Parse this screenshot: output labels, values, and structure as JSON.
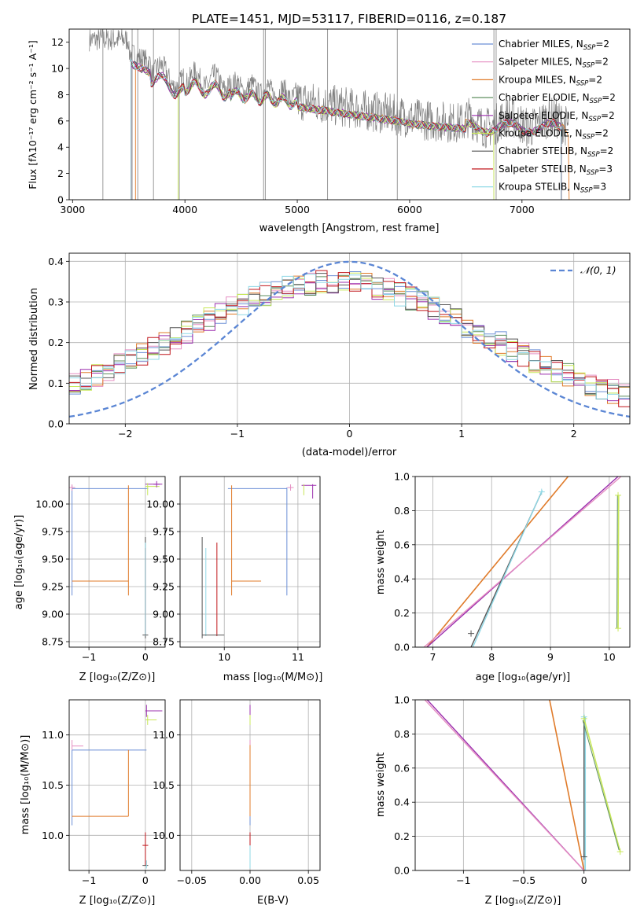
{
  "colors": {
    "Chabrier MILES": "#6b8fd6",
    "Salpeter MILES": "#e58fc2",
    "Kroupa MILES": "#e07b2a",
    "Chabrier ELODIE": "#5f8f5f",
    "Salpeter ELODIE": "#9b2fae",
    "Kroupa ELODIE": "#c8e85a",
    "Chabrier STELIB": "#555555",
    "Salpeter STELIB": "#c0161b",
    "Kroupa STELIB": "#8fd8e6",
    "data": "#808080",
    "gaussian": "#5b86d4"
  },
  "chart_data": [
    {
      "id": "spectrum",
      "type": "line",
      "title": "PLATE=1451, MJD=53117, FIBERID=0116, z=0.187",
      "xlabel": "wavelength [Angstrom, rest frame]",
      "ylabel": "Flux [fλ10⁻¹⁷ erg cm⁻² s⁻¹ A⁻¹]",
      "xlim": [
        2970,
        7960
      ],
      "ylim": [
        0,
        13
      ],
      "xticks": [
        3000,
        4000,
        5000,
        6000,
        7000
      ],
      "yticks": [
        0,
        2,
        4,
        6,
        8,
        10,
        12
      ],
      "grid": false,
      "legend_position": "upper-right",
      "legend": [
        {
          "name": "Chabrier MILES",
          "label": "Chabrier MILES, N",
          "sub": "SSP",
          "suffix": "=2"
        },
        {
          "name": "Salpeter MILES",
          "label": "Salpeter MILES, N",
          "sub": "SSP",
          "suffix": "=2"
        },
        {
          "name": "Kroupa MILES",
          "label": "Kroupa MILES, N",
          "sub": "SSP",
          "suffix": "=2"
        },
        {
          "name": "Chabrier ELODIE",
          "label": "Chabrier ELODIE, N",
          "sub": "SSP",
          "suffix": "=2"
        },
        {
          "name": "Salpeter ELODIE",
          "label": "Salpeter ELODIE, N",
          "sub": "SSP",
          "suffix": "=2"
        },
        {
          "name": "Kroupa ELODIE",
          "label": "Kroupa ELODIE, N",
          "sub": "SSP",
          "suffix": "=2"
        },
        {
          "name": "Chabrier STELIB",
          "label": "Chabrier STELIB, N",
          "sub": "SSP",
          "suffix": "=2"
        },
        {
          "name": "Salpeter STELIB",
          "label": "Salpeter STELIB, N",
          "sub": "SSP",
          "suffix": "=3"
        },
        {
          "name": "Kroupa STELIB",
          "label": "Kroupa STELIB, N",
          "sub": "SSP",
          "suffix": "=3"
        }
      ],
      "data_spikes": [
        3270,
        3530,
        3580,
        3720,
        3950,
        4700,
        4715,
        5270,
        5890,
        6750,
        6770
      ]
    },
    {
      "id": "residuals",
      "type": "line",
      "xlabel": "(data-model)/error",
      "ylabel": "Normed distribution",
      "xlim": [
        -2.5,
        2.5
      ],
      "ylim": [
        0,
        0.42
      ],
      "xticks": [
        -2,
        -1,
        0,
        1,
        2
      ],
      "yticks": [
        0.0,
        0.1,
        0.2,
        0.3,
        0.4
      ],
      "grid": true,
      "legend_position": "upper-right",
      "legend": [
        {
          "name": "𝒩(0, 1)"
        }
      ],
      "gaussian": {
        "mean": 0,
        "sigma": 1
      }
    },
    {
      "id": "age_vs_Z",
      "type": "errorbar",
      "xlabel": "Z [log₁₀(Z/Z⊙)]",
      "ylabel": "age  [log₁₀(age/yr)]",
      "xlim": [
        -1.35,
        0.35
      ],
      "ylim": [
        8.7,
        10.25
      ],
      "xticks": [
        -1,
        0
      ],
      "yticks": [
        8.75,
        9.0,
        9.25,
        9.5,
        9.75,
        10.0
      ],
      "grid": true
    },
    {
      "id": "age_vs_mass",
      "type": "errorbar",
      "xlabel": "mass [log₁₀(M/M⊙)]",
      "ylabel": "",
      "xlim": [
        9.4,
        11.3
      ],
      "ylim": [
        8.7,
        10.25
      ],
      "xticks": [
        10,
        11
      ],
      "yticks": [
        8.75,
        9.0,
        9.25,
        9.5,
        9.75,
        10.0
      ],
      "grid": true
    },
    {
      "id": "weight_vs_age",
      "type": "line",
      "xlabel": "age  [log₁₀(age/yr)]",
      "ylabel": "mass weight",
      "xlim": [
        6.7,
        10.35
      ],
      "ylim": [
        0,
        1.0
      ],
      "xticks": [
        7,
        8,
        9,
        10
      ],
      "yticks": [
        0.0,
        0.2,
        0.4,
        0.6,
        0.8,
        1.0
      ],
      "grid": true
    },
    {
      "id": "mass_vs_Z",
      "type": "errorbar",
      "xlabel": "Z [log₁₀(Z/Z⊙)]",
      "ylabel": "mass [log₁₀(M/M⊙)]",
      "xlim": [
        -1.35,
        0.35
      ],
      "ylim": [
        9.65,
        11.35
      ],
      "xticks": [
        -1,
        0
      ],
      "yticks": [
        10.0,
        10.5,
        11.0
      ],
      "grid": true
    },
    {
      "id": "mass_vs_ebv",
      "type": "errorbar",
      "xlabel": "E(B-V)",
      "ylabel": "",
      "xlim": [
        -0.06,
        0.06
      ],
      "ylim": [
        9.65,
        11.35
      ],
      "xticks": [
        -0.05,
        0.0,
        0.05
      ],
      "yticks": [
        10.0,
        10.5,
        11.0
      ],
      "grid": true
    },
    {
      "id": "weight_vs_Z",
      "type": "line",
      "xlabel": "Z [log₁₀(Z/Z⊙)]",
      "ylabel": "mass weight",
      "xlim": [
        -1.4,
        0.38
      ],
      "ylim": [
        0,
        1.0
      ],
      "xticks": [
        -1.0,
        -0.5,
        0.0
      ],
      "yticks": [
        0.0,
        0.2,
        0.4,
        0.6,
        0.8,
        1.0
      ],
      "grid": true
    }
  ]
}
